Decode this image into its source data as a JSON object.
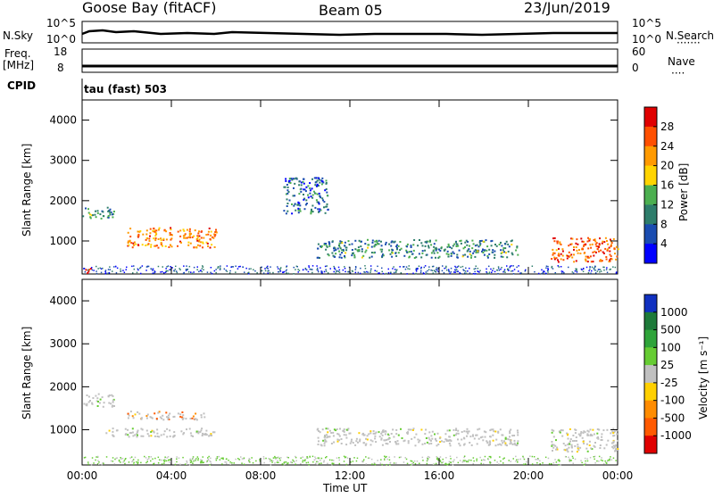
{
  "header": {
    "title": "Goose Bay (fitACF)",
    "beam": "Beam 05",
    "date": "23/Jun/2019"
  },
  "strip_noise": {
    "left_label": "N.Sky",
    "right_label": "N.Search",
    "left_ticks": [
      "10^5",
      "10^0"
    ],
    "right_ticks": [
      "10^5",
      "10^0"
    ]
  },
  "strip_freq": {
    "left_label_1": "Freq.",
    "left_label_2": "[MHz]",
    "right_label": "Nave",
    "left_ticks": [
      "18",
      "8"
    ],
    "right_ticks": [
      "60",
      "0"
    ]
  },
  "cpid": {
    "label": "CPID",
    "value": "tau (fast) 503"
  },
  "chart_data": [
    {
      "type": "heatmap",
      "panel": "power",
      "ylabel": "Slant Range [km]",
      "yticks": [
        "1000",
        "2000",
        "3000",
        "4000"
      ],
      "ylim": [
        180,
        4500
      ],
      "xlim": [
        0,
        24
      ],
      "colorbar_label": "Power [dB]",
      "colorbar_ticks": [
        "4",
        "8",
        "12",
        "16",
        "20",
        "24",
        "28"
      ],
      "colorbar_colors": [
        "#0000ff",
        "#1a4cb0",
        "#2e7d6b",
        "#4caf50",
        "#ffd400",
        "#ff9a00",
        "#ff5000",
        "#e00000"
      ],
      "features": [
        {
          "t0": 0.0,
          "t1": 1.4,
          "r0": 1550,
          "r1": 1850,
          "level": 0.35
        },
        {
          "t0": 2.0,
          "t1": 6.0,
          "r0": 850,
          "r1": 1350,
          "level": 0.75
        },
        {
          "t0": 0.0,
          "t1": 0.4,
          "r0": 200,
          "r1": 350,
          "level": 1.0
        },
        {
          "t0": 10.5,
          "t1": 19.5,
          "r0": 600,
          "r1": 1050,
          "level": 0.3
        },
        {
          "t0": 21.0,
          "t1": 24.0,
          "r0": 500,
          "r1": 1100,
          "level": 0.85
        },
        {
          "t0": 9.0,
          "t1": 11.0,
          "r0": 1700,
          "r1": 2600,
          "level": 0.2
        }
      ]
    },
    {
      "type": "heatmap",
      "panel": "velocity",
      "ylabel": "Slant Range [km]",
      "yticks": [
        "1000",
        "2000",
        "3000",
        "4000"
      ],
      "ylim": [
        180,
        4500
      ],
      "xlim": [
        0,
        24
      ],
      "xlabel": "Time UT",
      "xticks": [
        "00:00",
        "04:00",
        "08:00",
        "12:00",
        "16:00",
        "20:00",
        "00:00"
      ],
      "colorbar_label": "Velocity [m s⁻¹]",
      "colorbar_ticks": [
        "1000",
        "500",
        "100",
        "25",
        "-25",
        "-100",
        "-500",
        "-1000"
      ],
      "colorbar_colors": [
        "#1030c0",
        "#1e7a3a",
        "#2fa43a",
        "#66cc33",
        "#c0c0c0",
        "#ffd000",
        "#ff8c00",
        "#ff5a00",
        "#e00000"
      ],
      "features": [
        {
          "t0": 0.0,
          "t1": 1.4,
          "r0": 1550,
          "r1": 1850,
          "level": 0.5
        },
        {
          "t0": 2.0,
          "t1": 5.5,
          "r0": 1250,
          "r1": 1450,
          "level": 0.8
        },
        {
          "t0": 1.0,
          "t1": 6.0,
          "r0": 850,
          "r1": 1050,
          "level": 0.5
        },
        {
          "t0": 10.5,
          "t1": 19.5,
          "r0": 650,
          "r1": 1050,
          "level": 0.5
        },
        {
          "t0": 21.0,
          "t1": 24.0,
          "r0": 500,
          "r1": 1050,
          "level": 0.5
        }
      ]
    }
  ]
}
